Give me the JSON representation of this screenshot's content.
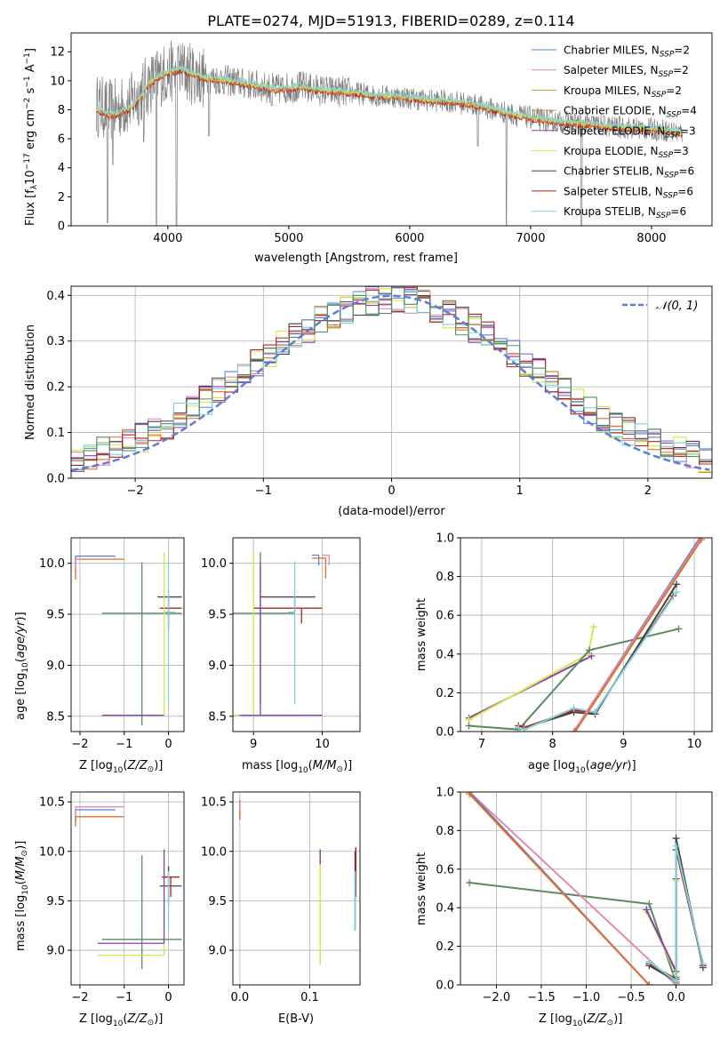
{
  "page_title": "PLATE=0274, MJD=51913, FIBERID=0289, z=0.114",
  "colors": {
    "chabrier_miles": "#5b7fd6",
    "salpeter_miles": "#e28ab4",
    "kroupa_miles": "#c0922e",
    "chabrier_elodie": "#c0922e",
    "salpeter_elodie": "#8a3fb0",
    "kroupa_elodie": "#d4e84c",
    "chabrier_stelib": "#444444",
    "salpeter_stelib": "#b22222",
    "kroupa_stelib": "#7dd3dc",
    "green": "#5a8a60",
    "orange": "#e2702a",
    "gaussian": "#5b7fd6",
    "spectrum": "#7f7f7f"
  },
  "chart_data": [
    {
      "id": "spectrum",
      "type": "line",
      "title": "PLATE=0274, MJD=51913, FIBERID=0289, z=0.114",
      "xlabel": "wavelength [Angstrom, rest frame]",
      "ylabel": "Flux [f_λ 10^-17 erg cm^-2 s^-1 A^-1]",
      "xlim": [
        3200,
        8500
      ],
      "ylim": [
        0,
        13.3
      ],
      "xticks": [
        "4000",
        "5000",
        "6000",
        "7000",
        "8000"
      ],
      "yticks": [
        "0",
        "2",
        "4",
        "6",
        "8",
        "10",
        "12"
      ],
      "legend": {
        "placement": "upper right",
        "entries": [
          {
            "name": "Chabrier MILES, N",
            "sub": "SSP",
            "tail": "=2",
            "color": "#5b7fd6"
          },
          {
            "name": "Salpeter MILES, N",
            "sub": "SSP",
            "tail": "=2",
            "color": "#e28ab4"
          },
          {
            "name": "Kroupa MILES, N",
            "sub": "SSP",
            "tail": "=2",
            "color": "#c0922e"
          },
          {
            "name": "Chabrier ELODIE, N",
            "sub": "SSP",
            "tail": "=4",
            "color": "#c0922e"
          },
          {
            "name": "Salpeter ELODIE, N",
            "sub": "SSP",
            "tail": "=3",
            "color": "#8a3fb0"
          },
          {
            "name": "Kroupa ELODIE, N",
            "sub": "SSP",
            "tail": "=3",
            "color": "#d4e84c"
          },
          {
            "name": "Chabrier STELIB, N",
            "sub": "SSP",
            "tail": "=6",
            "color": "#444444"
          },
          {
            "name": "Salpeter STELIB, N",
            "sub": "SSP",
            "tail": "=6",
            "color": "#b22222"
          },
          {
            "name": "Kroupa STELIB, N",
            "sub": "SSP",
            "tail": "=6",
            "color": "#7dd3dc"
          }
        ]
      },
      "continuum": {
        "x": [
          3410,
          3550,
          3700,
          3850,
          3950,
          4100,
          4300,
          4500,
          4700,
          4900,
          5100,
          5300,
          5500,
          5700,
          5900,
          6100,
          6300,
          6500,
          6700,
          6900,
          7100,
          7300,
          7500,
          7700,
          7900,
          8100,
          8250
        ],
        "y": [
          8.3,
          7.9,
          8.5,
          9.8,
          10.4,
          10.8,
          10.2,
          10.0,
          9.7,
          9.4,
          9.6,
          9.3,
          9.2,
          9.0,
          8.9,
          8.7,
          8.6,
          8.4,
          8.0,
          7.6,
          7.3,
          7.1,
          7.0,
          6.8,
          6.7,
          6.6,
          6.4
        ]
      },
      "dips": [
        {
          "x": 3500,
          "y": 0.2
        },
        {
          "x": 3545,
          "y": 4.2
        },
        {
          "x": 3800,
          "y": 5.8
        },
        {
          "x": 3905,
          "y": 0
        },
        {
          "x": 4072,
          "y": 0
        },
        {
          "x": 4340,
          "y": 6.2
        },
        {
          "x": 4860,
          "y": 8.3
        },
        {
          "x": 6563,
          "y": 5.5
        },
        {
          "x": 6800,
          "y": 0
        },
        {
          "x": 7420,
          "y": 0
        }
      ]
    },
    {
      "id": "residuals",
      "type": "line",
      "xlabel": "(data-model)/error",
      "ylabel": "Normed distribution",
      "xlim": [
        -2.5,
        2.5
      ],
      "ylim": [
        0,
        0.42
      ],
      "grid": true,
      "xticks": [
        "−2",
        "−1",
        "0",
        "1",
        "2"
      ],
      "yticks": [
        "0.0",
        "0.1",
        "0.2",
        "0.3",
        "0.4"
      ],
      "legend": {
        "placement": "upper right",
        "entries": [
          {
            "name": "𝒩(0, 1)",
            "color": "#5b7fd6"
          }
        ]
      },
      "bin_width": 0.1
    },
    {
      "id": "age_vs_Z",
      "type": "scatter",
      "xlabel": "Z [log10(Z/Z⊙)]",
      "ylabel": "age  [log10(age/yr)]",
      "xlim": [
        -2.2,
        0.35
      ],
      "ylim": [
        8.35,
        10.25
      ],
      "grid": true,
      "xticks": [
        "−2",
        "−1",
        "0"
      ],
      "yticks": [
        "8.5",
        "9.0",
        "9.5",
        "10.0"
      ],
      "points": [
        {
          "x": -2.1,
          "y": 10.07,
          "xerr": [
            0.0,
            0.9
          ],
          "yerr": [
            0.15,
            0.0
          ],
          "c": "blue"
        },
        {
          "x": -2.1,
          "y": 10.04,
          "xerr": [
            0.0,
            1.1
          ],
          "yerr": [
            0.2,
            0.0
          ],
          "c": "orange"
        },
        {
          "x": -2.1,
          "y": 10.04,
          "xerr": [
            0.0,
            0.1
          ],
          "yerr": [
            0.1,
            0.0
          ],
          "c": "pink"
        },
        {
          "x": -0.6,
          "y": 9.51,
          "xerr": [
            0.9,
            0.9
          ],
          "yerr": [
            1.1,
            0.5
          ],
          "c": "green"
        },
        {
          "x": 0.0,
          "y": 9.67,
          "xerr": [
            0.25,
            0.3
          ],
          "yerr": [
            0.2,
            0.0
          ],
          "c": "black"
        },
        {
          "x": 0.0,
          "y": 9.56,
          "xerr": [
            0.2,
            0.3
          ],
          "yerr": [
            0.2,
            0.0
          ],
          "c": "red"
        },
        {
          "x": 0.0,
          "y": 9.52,
          "xerr": [
            0.1,
            0.15
          ],
          "yerr": [
            0.9,
            0.5
          ],
          "c": "cyan"
        },
        {
          "x": -0.1,
          "y": 8.51,
          "xerr": [
            1.4,
            0.0
          ],
          "yerr": [
            0.0,
            1.6
          ],
          "c": "lime"
        },
        {
          "x": -0.1,
          "y": 8.51,
          "xerr": [
            1.4,
            0.0
          ],
          "yerr": [
            0.0,
            0.0
          ],
          "c": "purple"
        }
      ]
    },
    {
      "id": "age_vs_mass",
      "type": "scatter",
      "xlabel": "mass [log10(M/M⊙)]",
      "xlim": [
        8.7,
        10.55
      ],
      "ylim": [
        8.35,
        10.25
      ],
      "grid": true,
      "xticks": [
        "9",
        "10"
      ],
      "yticks": [
        "8.5",
        "9.0",
        "9.5",
        "10.0"
      ],
      "points": [
        {
          "x": 9.95,
          "y": 10.08,
          "xerr": [
            0.1,
            0.0
          ],
          "yerr": [
            0.1,
            0.0
          ],
          "c": "blue"
        },
        {
          "x": 10.05,
          "y": 10.05,
          "xerr": [
            0.2,
            0.0
          ],
          "yerr": [
            0.2,
            0.0
          ],
          "c": "orange"
        },
        {
          "x": 10.1,
          "y": 10.08,
          "xerr": [
            0.1,
            0.0
          ],
          "yerr": [
            0.1,
            0.0
          ],
          "c": "pink"
        },
        {
          "x": 9.1,
          "y": 9.51,
          "xerr": [
            0.4,
            0.5
          ],
          "yerr": [
            0.9,
            0.6
          ],
          "c": "green"
        },
        {
          "x": 9.6,
          "y": 9.67,
          "xerr": [
            0.5,
            0.3
          ],
          "yerr": [
            0.15,
            0.0
          ],
          "c": "black"
        },
        {
          "x": 9.7,
          "y": 9.56,
          "xerr": [
            0.7,
            0.3
          ],
          "yerr": [
            0.15,
            0.0
          ],
          "c": "red"
        },
        {
          "x": 9.6,
          "y": 9.52,
          "xerr": [
            0.1,
            0.0
          ],
          "yerr": [
            0.9,
            0.5
          ],
          "c": "cyan"
        },
        {
          "x": 9.0,
          "y": 8.51,
          "xerr": [
            0.3,
            0.6
          ],
          "yerr": [
            0.0,
            1.6
          ],
          "c": "lime"
        },
        {
          "x": 9.1,
          "y": 8.51,
          "xerr": [
            0.3,
            0.9
          ],
          "yerr": [
            0.0,
            1.5
          ],
          "c": "purple"
        }
      ]
    },
    {
      "id": "weight_vs_age",
      "type": "line",
      "xlabel": "age  [log10(age/yr)]",
      "ylabel": "mass weight",
      "xlim": [
        6.7,
        10.25
      ],
      "ylim": [
        0,
        1.0
      ],
      "grid": true,
      "xticks": [
        "7",
        "8",
        "9",
        "10"
      ],
      "yticks": [
        "0.0",
        "0.2",
        "0.4",
        "0.6",
        "0.8",
        "1.0"
      ],
      "series": [
        {
          "c": "purple",
          "x": [
            6.82,
            8.55
          ],
          "y": [
            0.07,
            0.39
          ]
        },
        {
          "c": "lime",
          "x": [
            6.82,
            8.5,
            8.58
          ],
          "y": [
            0.06,
            0.4,
            0.54
          ]
        },
        {
          "c": "green",
          "x": [
            6.82,
            7.52,
            8.52,
            9.78
          ],
          "y": [
            0.03,
            0.01,
            0.42,
            0.53
          ]
        },
        {
          "c": "black",
          "x": [
            7.52,
            7.6,
            8.3,
            8.6,
            9.75
          ],
          "y": [
            0.02,
            0.02,
            0.1,
            0.09,
            0.76
          ]
        },
        {
          "c": "red",
          "x": [
            7.52,
            7.6,
            8.3,
            8.6,
            9.7
          ],
          "y": [
            0.03,
            0.02,
            0.11,
            0.1,
            0.7
          ]
        },
        {
          "c": "cyan",
          "x": [
            7.52,
            7.6,
            8.3,
            8.6,
            9.75
          ],
          "y": [
            0.02,
            0.01,
            0.12,
            0.1,
            0.72
          ]
        },
        {
          "c": "blue",
          "x": [
            8.3,
            10.08
          ],
          "y": [
            0.0,
            1.0
          ]
        },
        {
          "c": "pink",
          "x": [
            8.3,
            10.1
          ],
          "y": [
            0.0,
            1.0
          ]
        },
        {
          "c": "orange",
          "x": [
            8.32,
            10.1
          ],
          "y": [
            0.0,
            0.99
          ]
        }
      ]
    },
    {
      "id": "mass_vs_Z",
      "type": "scatter",
      "xlabel": "Z [log10(Z/Z⊙)]",
      "ylabel": "mass [log10(M/M⊙)]",
      "xlim": [
        -2.2,
        0.35
      ],
      "ylim": [
        8.65,
        10.6
      ],
      "grid": true,
      "xticks": [
        "−2",
        "−1",
        "0"
      ],
      "yticks": [
        "9.0",
        "9.5",
        "10.0",
        "10.5"
      ],
      "points": [
        {
          "x": -2.1,
          "y": 10.42,
          "xerr": [
            0.0,
            0.9
          ],
          "yerr": [
            0.1,
            0.0
          ],
          "c": "blue"
        },
        {
          "x": -2.1,
          "y": 10.45,
          "xerr": [
            0.0,
            1.1
          ],
          "yerr": [
            0.15,
            0.0
          ],
          "c": "pink"
        },
        {
          "x": -2.1,
          "y": 10.35,
          "xerr": [
            0.0,
            1.1
          ],
          "yerr": [
            0.1,
            0.0
          ],
          "c": "orange"
        },
        {
          "x": -0.6,
          "y": 9.11,
          "xerr": [
            0.9,
            0.9
          ],
          "yerr": [
            0.3,
            0.85
          ],
          "c": "green"
        },
        {
          "x": 0.0,
          "y": 9.65,
          "xerr": [
            0.2,
            0.3
          ],
          "yerr": [
            0.2,
            0.2
          ],
          "c": "black"
        },
        {
          "x": 0.05,
          "y": 9.74,
          "xerr": [
            0.2,
            0.2
          ],
          "yerr": [
            0.2,
            0.0
          ],
          "c": "red"
        },
        {
          "x": 0.0,
          "y": 9.5,
          "xerr": [
            0.1,
            0.0
          ],
          "yerr": [
            0.3,
            0.3
          ],
          "c": "cyan"
        },
        {
          "x": -0.1,
          "y": 8.95,
          "xerr": [
            1.5,
            0.0
          ],
          "yerr": [
            0.0,
            1.0
          ],
          "c": "lime"
        },
        {
          "x": -0.1,
          "y": 9.07,
          "xerr": [
            1.5,
            0.0
          ],
          "yerr": [
            0.0,
            0.95
          ],
          "c": "purple"
        }
      ]
    },
    {
      "id": "mass_vs_ebv",
      "type": "scatter",
      "xlabel": "E(B-V)",
      "xlim": [
        -0.01,
        0.172
      ],
      "ylim": [
        8.65,
        10.6
      ],
      "grid": true,
      "xticks": [
        "0.0",
        "0.1"
      ],
      "yticks": [
        "9.0",
        "9.5",
        "10.0",
        "10.5"
      ],
      "points": [
        {
          "x": 0.0,
          "y": 10.42,
          "yerr": [
            0.1,
            0.1
          ],
          "c": "orange"
        },
        {
          "x": 0.0,
          "y": 10.45,
          "yerr": [
            0.05,
            0.05
          ],
          "c": "pink"
        },
        {
          "x": 0.115,
          "y": 9.95,
          "yerr": [
            1.1,
            0.05
          ],
          "c": "lime"
        },
        {
          "x": 0.115,
          "y": 9.97,
          "yerr": [
            0.1,
            0.05
          ],
          "c": "purple"
        },
        {
          "x": 0.165,
          "y": 9.7,
          "yerr": [
            0.5,
            0.3
          ],
          "c": "black"
        },
        {
          "x": 0.166,
          "y": 9.74,
          "yerr": [
            0.2,
            0.3
          ],
          "c": "red"
        },
        {
          "x": 0.165,
          "y": 9.5,
          "yerr": [
            0.3,
            0.3
          ],
          "c": "cyan"
        }
      ]
    },
    {
      "id": "weight_vs_Z",
      "type": "line",
      "xlabel": "Z [log10(Z/Z⊙)]",
      "ylabel": "mass weight",
      "xlim": [
        -2.4,
        0.4
      ],
      "ylim": [
        0,
        1.0
      ],
      "grid": true,
      "xticks": [
        "−2.0",
        "−1.5",
        "−1.0",
        "−0.5",
        "0.0"
      ],
      "yticks": [
        "0.0",
        "0.2",
        "0.4",
        "0.6",
        "0.8",
        "1.0"
      ],
      "series": [
        {
          "c": "green",
          "x": [
            -2.3,
            -0.3,
            0.0,
            0.0
          ],
          "y": [
            0.53,
            0.42,
            0.01,
            0.04
          ]
        },
        {
          "c": "lime",
          "x": [
            -0.33,
            0.0,
            0.0
          ],
          "y": [
            0.38,
            0.06,
            0.54
          ]
        },
        {
          "c": "purple",
          "x": [
            -0.33,
            0.0,
            0.0
          ],
          "y": [
            0.39,
            0.07,
            0.55
          ]
        },
        {
          "c": "pink",
          "x": [
            -2.3,
            0.0
          ],
          "y": [
            1.0,
            0.0
          ]
        },
        {
          "c": "blue",
          "x": [
            -2.3,
            -0.3
          ],
          "y": [
            1.0,
            0.0
          ]
        },
        {
          "c": "orange",
          "x": [
            -2.3,
            -0.3
          ],
          "y": [
            0.99,
            0.0
          ]
        },
        {
          "c": "black",
          "x": [
            -0.3,
            0.0,
            0.0,
            0.3
          ],
          "y": [
            0.1,
            0.02,
            0.76,
            0.09
          ]
        },
        {
          "c": "red",
          "x": [
            -0.3,
            0.0,
            0.0,
            0.3
          ],
          "y": [
            0.11,
            0.03,
            0.7,
            0.1
          ]
        },
        {
          "c": "cyan",
          "x": [
            -0.3,
            0.0,
            0.0,
            0.3
          ],
          "y": [
            0.12,
            0.02,
            0.72,
            0.11
          ]
        }
      ]
    }
  ]
}
